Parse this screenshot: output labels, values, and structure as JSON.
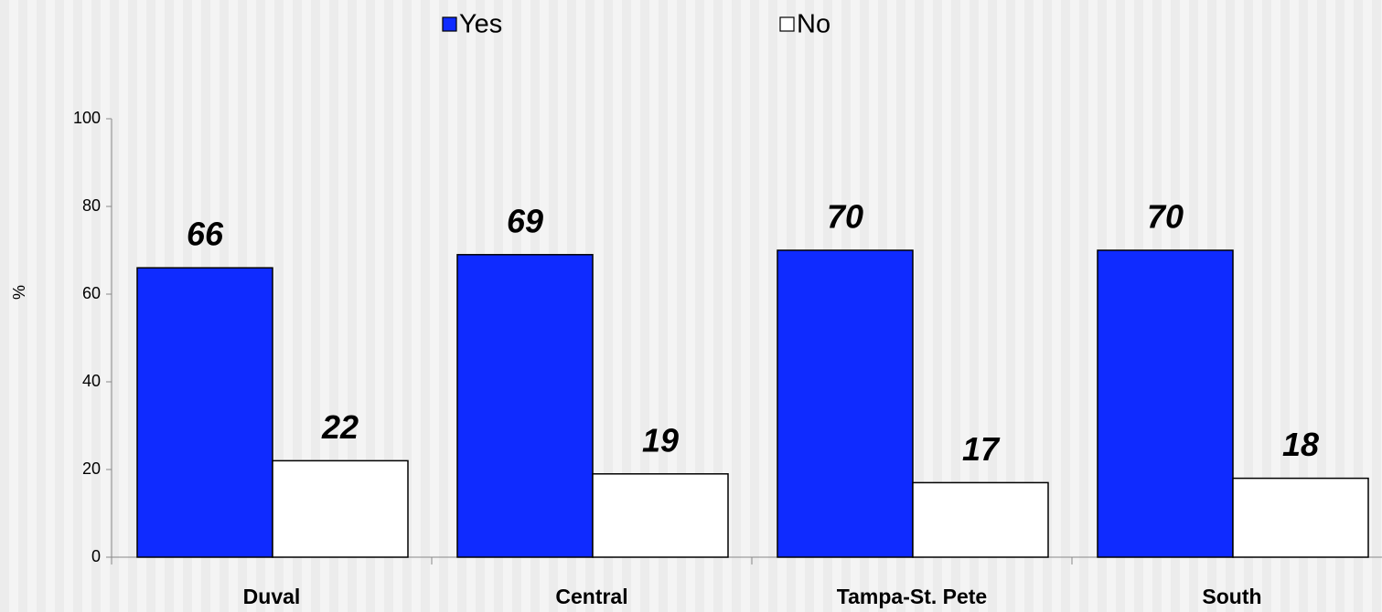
{
  "chart_data": {
    "type": "bar",
    "categories": [
      "Duval",
      "Central",
      "Tampa-St. Pete",
      "South"
    ],
    "series": [
      {
        "name": "Yes",
        "color": "#0f2bff",
        "values": [
          66,
          69,
          70,
          70
        ]
      },
      {
        "name": "No",
        "color": "#ffffff",
        "values": [
          22,
          19,
          17,
          18
        ]
      }
    ],
    "y_label": "%",
    "ylim": [
      0,
      100
    ],
    "yticks": [
      0,
      20,
      40,
      60,
      80,
      100
    ],
    "legend": "top"
  }
}
